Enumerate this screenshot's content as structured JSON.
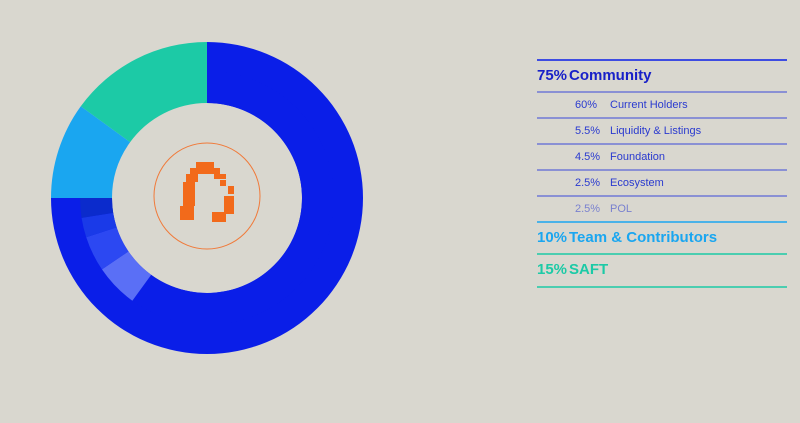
{
  "chart_data": {
    "type": "donut",
    "categories": [
      "Community",
      "Team & Contributors",
      "SAFT"
    ],
    "values": [
      75,
      10,
      15
    ],
    "value_labels": [
      "75%",
      "10%",
      "15%"
    ],
    "colors": [
      "#0a1ee8",
      "#1aa6f0",
      "#1ccaa6"
    ],
    "breakdown": {
      "categories": [
        "Current Holders",
        "Liquidity & Listings",
        "Foundation",
        "Ecosystem",
        "POL"
      ],
      "values": [
        60,
        5.5,
        4.5,
        2.5,
        2.5
      ],
      "value_labels": [
        "60%",
        "5.5%",
        "4.5%",
        "2.5%",
        "2.5%"
      ],
      "colors": [
        "#0a1ee8",
        "#5a6ff6",
        "#2c48f2",
        "#1a3ae8",
        "#0b2bcc"
      ]
    }
  }
}
